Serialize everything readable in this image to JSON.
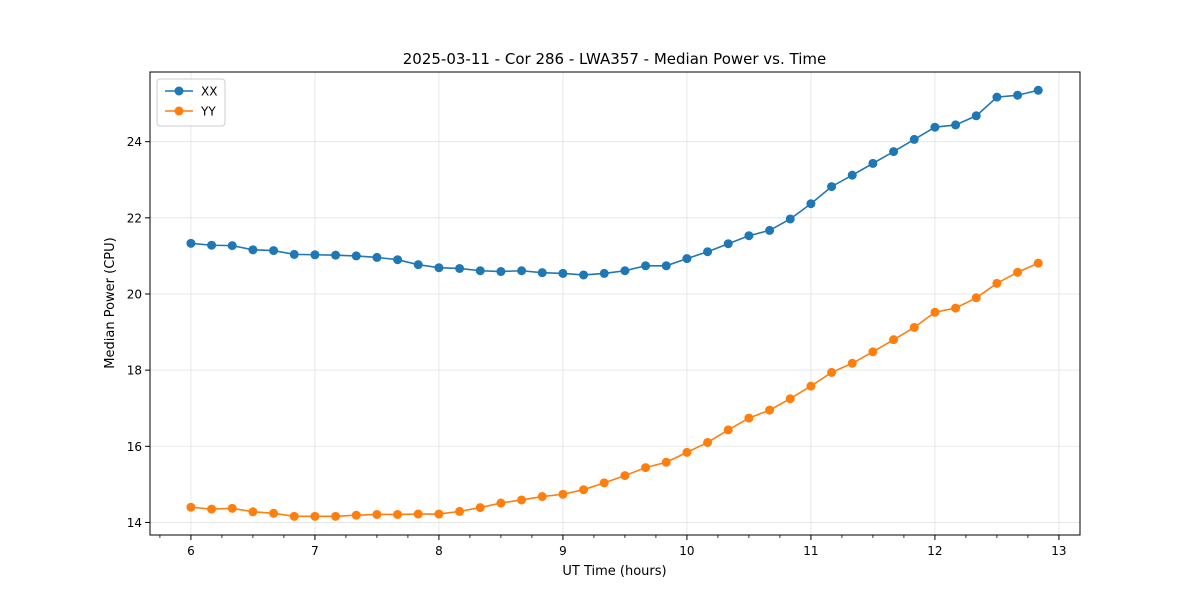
{
  "chart_data": {
    "type": "line",
    "title": "2025-03-11 - Cor 286 - LWA357 - Median Power vs. Time",
    "xlabel": "UT Time (hours)",
    "ylabel": "Median Power (CPU)",
    "xlim": [
      5.67,
      13.17
    ],
    "ylim": [
      13.67,
      25.83
    ],
    "grid": true,
    "legend_position": "top-left",
    "x_ticks": [
      6,
      7,
      8,
      9,
      10,
      11,
      12,
      13
    ],
    "y_ticks": [
      14,
      16,
      18,
      20,
      22,
      24
    ],
    "x": [
      6.0,
      6.1667,
      6.3333,
      6.5,
      6.6667,
      6.8333,
      7.0,
      7.1667,
      7.3333,
      7.5,
      7.6667,
      7.8333,
      8.0,
      8.1667,
      8.3333,
      8.5,
      8.6667,
      8.8333,
      9.0,
      9.1667,
      9.3333,
      9.5,
      9.6667,
      9.8333,
      10.0,
      10.1667,
      10.3333,
      10.5,
      10.6667,
      10.8333,
      11.0,
      11.1667,
      11.3333,
      11.5,
      11.6667,
      11.8333,
      12.0,
      12.1667,
      12.3333,
      12.5,
      12.6667,
      12.8333
    ],
    "series": [
      {
        "name": "XX",
        "color": "#1f77b4",
        "values": [
          21.33,
          21.28,
          21.27,
          21.16,
          21.14,
          21.04,
          21.03,
          21.02,
          21.0,
          20.96,
          20.9,
          20.77,
          20.69,
          20.67,
          20.61,
          20.59,
          20.61,
          20.56,
          20.54,
          20.5,
          20.54,
          20.61,
          20.74,
          20.74,
          20.93,
          21.11,
          21.32,
          21.53,
          21.67,
          21.97,
          22.37,
          22.82,
          23.12,
          23.43,
          23.74,
          24.06,
          24.38,
          24.44,
          24.68,
          25.17,
          25.22,
          25.35
        ]
      },
      {
        "name": "YY",
        "color": "#ff7f0e",
        "values": [
          14.4,
          14.35,
          14.37,
          14.28,
          14.24,
          14.16,
          14.16,
          14.16,
          14.19,
          14.21,
          14.21,
          14.22,
          14.22,
          14.29,
          14.39,
          14.51,
          14.59,
          14.68,
          14.74,
          14.86,
          15.04,
          15.23,
          15.44,
          15.58,
          15.84,
          16.1,
          16.43,
          16.74,
          16.95,
          17.25,
          17.58,
          17.94,
          18.18,
          18.48,
          18.8,
          19.12,
          19.52,
          19.63,
          19.9,
          20.28,
          20.57,
          20.81
        ]
      }
    ]
  }
}
